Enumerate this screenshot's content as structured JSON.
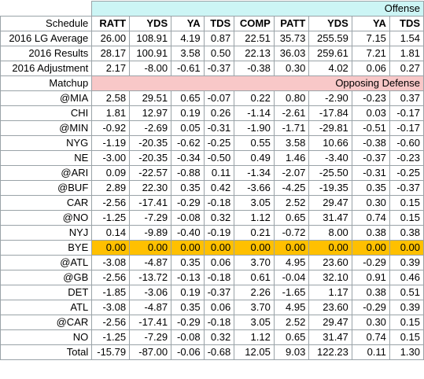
{
  "header": {
    "group_offense": "Offense",
    "group_defense": "Opposing Defense",
    "schedule_label": "Schedule",
    "matchup_label": "Matchup",
    "columns": [
      "RATT",
      "YDS",
      "YA",
      "TDS",
      "COMP",
      "PATT",
      "YDS",
      "YA",
      "TDS"
    ]
  },
  "summary_rows": [
    {
      "label": "2016 LG Average",
      "values": [
        "26.00",
        "108.91",
        "4.19",
        "0.87",
        "22.51",
        "35.73",
        "255.59",
        "7.15",
        "1.54"
      ]
    },
    {
      "label": "2016 Results",
      "values": [
        "28.17",
        "100.91",
        "3.58",
        "0.50",
        "22.13",
        "36.03",
        "259.61",
        "7.21",
        "1.81"
      ]
    },
    {
      "label": "2016 Adjustment",
      "values": [
        "2.17",
        "-8.00",
        "-0.61",
        "-0.37",
        "-0.38",
        "0.30",
        "4.02",
        "0.06",
        "0.27"
      ]
    }
  ],
  "matchups": [
    {
      "label": "@MIA",
      "values": [
        "2.58",
        "29.51",
        "0.65",
        "-0.07",
        "0.22",
        "0.80",
        "-2.90",
        "-0.23",
        "0.37"
      ]
    },
    {
      "label": "CHI",
      "values": [
        "1.81",
        "12.97",
        "0.19",
        "0.26",
        "-1.14",
        "-2.61",
        "-17.84",
        "0.03",
        "-0.17"
      ]
    },
    {
      "label": "@MIN",
      "values": [
        "-0.92",
        "-2.69",
        "0.05",
        "-0.31",
        "-1.90",
        "-1.71",
        "-29.81",
        "-0.51",
        "-0.17"
      ]
    },
    {
      "label": "NYG",
      "values": [
        "-1.19",
        "-20.35",
        "-0.62",
        "-0.25",
        "0.55",
        "3.58",
        "10.66",
        "-0.38",
        "-0.60"
      ]
    },
    {
      "label": "NE",
      "values": [
        "-3.00",
        "-20.35",
        "-0.34",
        "-0.50",
        "0.49",
        "1.46",
        "-3.40",
        "-0.37",
        "-0.23"
      ]
    },
    {
      "label": "@ARI",
      "values": [
        "0.09",
        "-22.57",
        "-0.88",
        "0.11",
        "-1.34",
        "-2.07",
        "-25.50",
        "-0.31",
        "-0.25"
      ]
    },
    {
      "label": "@BUF",
      "values": [
        "2.89",
        "22.30",
        "0.35",
        "0.42",
        "-3.66",
        "-4.25",
        "-19.35",
        "0.35",
        "-0.37"
      ]
    },
    {
      "label": "CAR",
      "values": [
        "-2.56",
        "-17.41",
        "-0.29",
        "-0.18",
        "3.05",
        "2.52",
        "29.47",
        "0.30",
        "0.15"
      ]
    },
    {
      "label": "@NO",
      "values": [
        "-1.25",
        "-7.29",
        "-0.08",
        "0.32",
        "1.12",
        "0.65",
        "31.47",
        "0.74",
        "0.15"
      ]
    },
    {
      "label": "NYJ",
      "values": [
        "0.14",
        "-9.89",
        "-0.40",
        "-0.19",
        "0.21",
        "-0.72",
        "8.00",
        "0.38",
        "0.38"
      ]
    },
    {
      "label": "BYE",
      "values": [
        "0.00",
        "0.00",
        "0.00",
        "0.00",
        "0.00",
        "0.00",
        "0.00",
        "0.00",
        "0.00"
      ],
      "highlight": "#ffc000"
    },
    {
      "label": "@ATL",
      "values": [
        "-3.08",
        "-4.87",
        "0.35",
        "0.06",
        "3.70",
        "4.95",
        "23.60",
        "-0.29",
        "0.39"
      ]
    },
    {
      "label": "@GB",
      "values": [
        "-2.56",
        "-13.72",
        "-0.13",
        "-0.18",
        "0.61",
        "-0.04",
        "32.10",
        "0.91",
        "0.46"
      ]
    },
    {
      "label": "DET",
      "values": [
        "-1.85",
        "-3.06",
        "0.19",
        "-0.37",
        "2.26",
        "-1.65",
        "1.17",
        "0.38",
        "0.51"
      ]
    },
    {
      "label": "ATL",
      "values": [
        "-3.08",
        "-4.87",
        "0.35",
        "0.06",
        "3.70",
        "4.95",
        "23.60",
        "-0.29",
        "0.39"
      ]
    },
    {
      "label": "@CAR",
      "values": [
        "-2.56",
        "-17.41",
        "-0.29",
        "-0.18",
        "3.05",
        "2.52",
        "29.47",
        "0.30",
        "0.15"
      ]
    },
    {
      "label": "NO",
      "values": [
        "-1.25",
        "-7.29",
        "-0.08",
        "0.32",
        "1.12",
        "0.65",
        "31.47",
        "0.74",
        "0.15"
      ]
    }
  ],
  "total": {
    "label": "Total",
    "values": [
      "-15.79",
      "-87.00",
      "-0.06",
      "-0.68",
      "12.05",
      "9.03",
      "122.23",
      "0.11",
      "1.30"
    ]
  },
  "colors": {
    "offense_band": "#ccf5f5",
    "defense_band": "#f8c8c8",
    "bye_highlight": "#ffc000",
    "grid": "#9aa3a8"
  }
}
